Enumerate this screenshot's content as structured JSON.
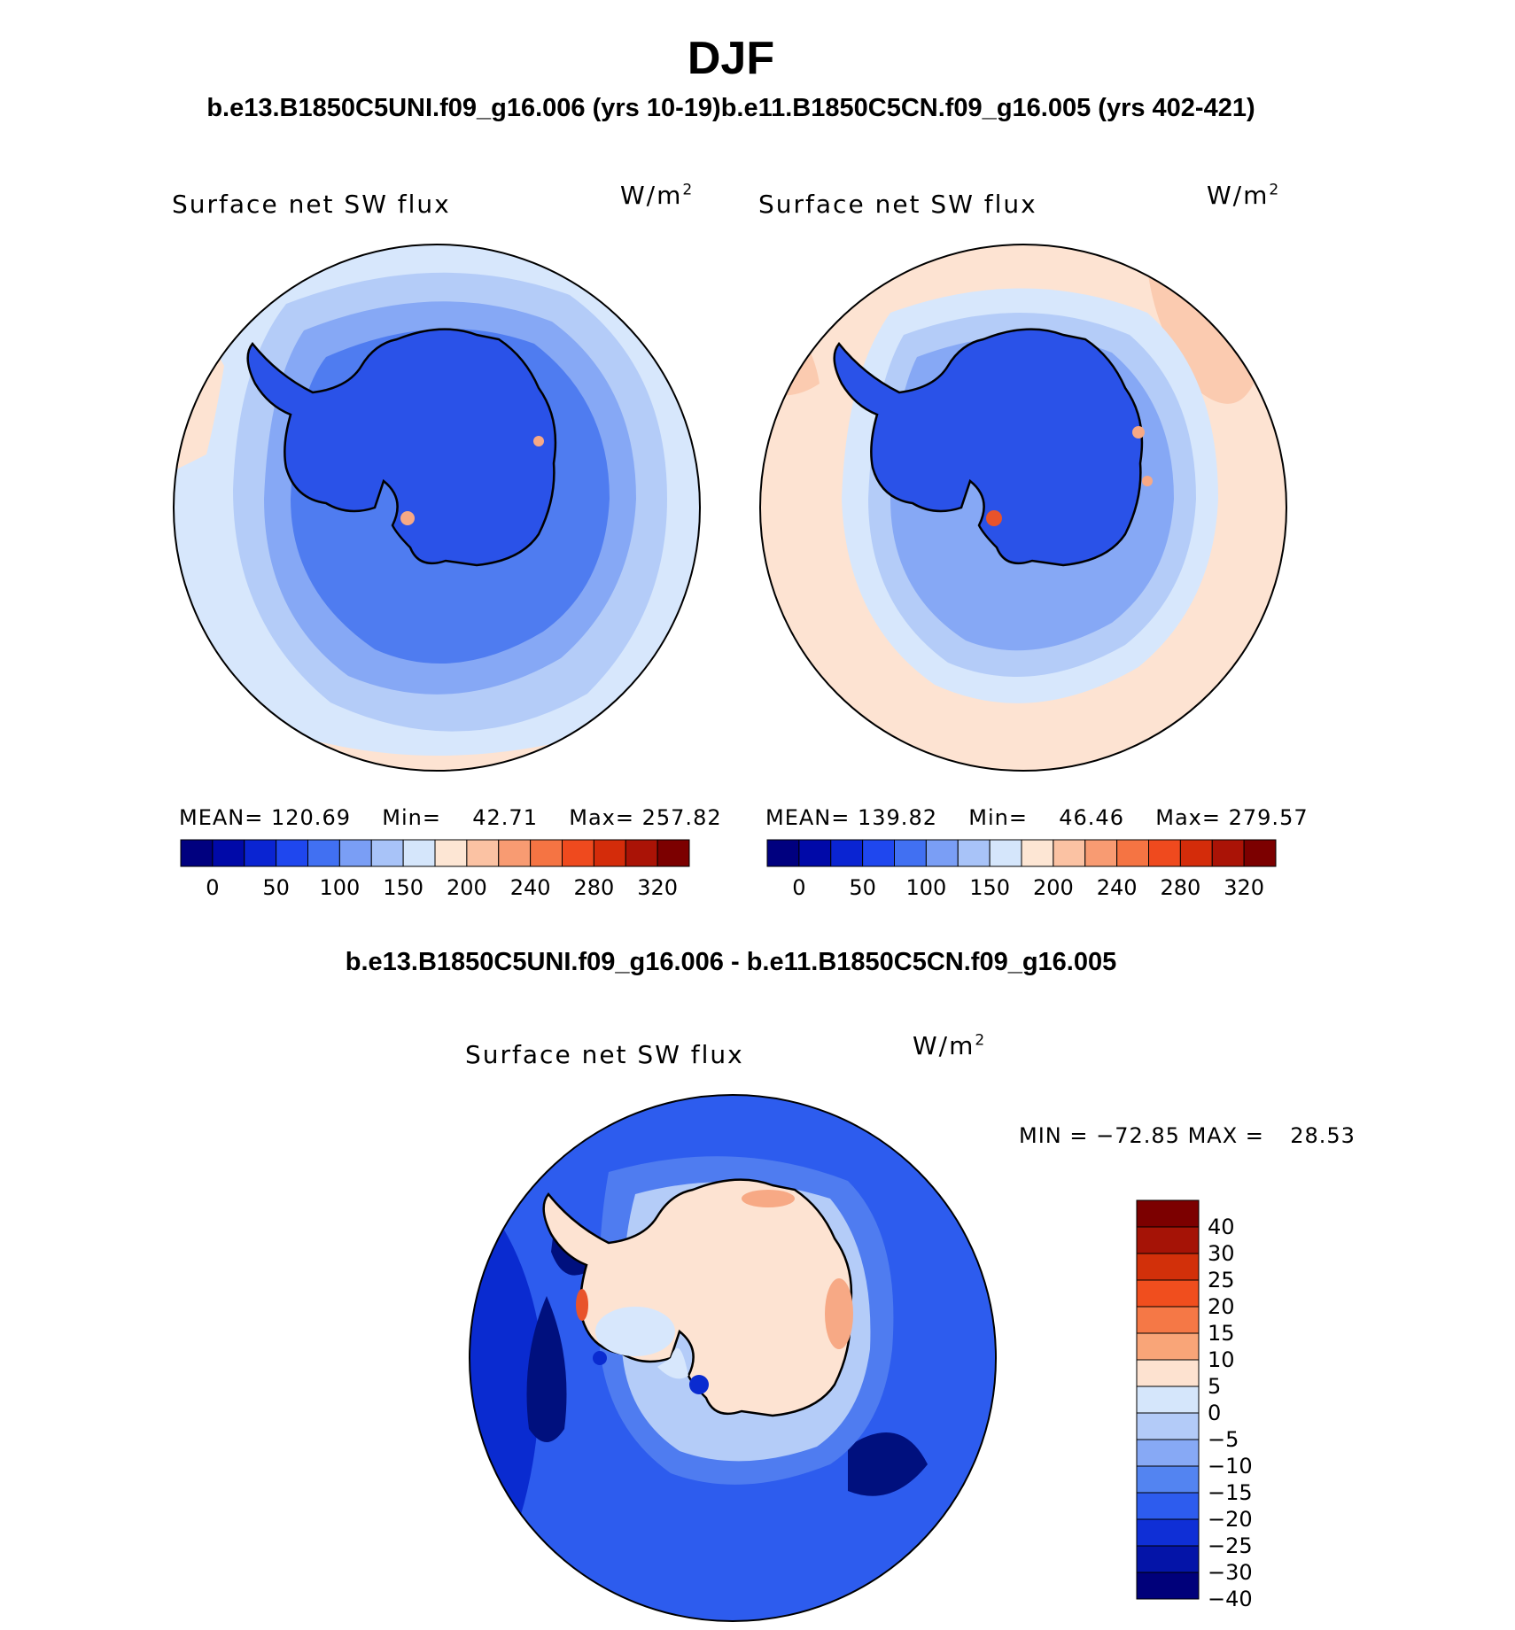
{
  "figure": {
    "season": "DJF",
    "case_a_title": "b.e13.B1850C5UNI.f09_g16.006 (yrs 10-19)",
    "case_b_title": "b.e11.B1850C5CN.f09_g16.005 (yrs 402-421)",
    "diff_title": "b.e13.B1850C5UNI.f09_g16.006 - b.e11.B1850C5CN.f09_g16.005"
  },
  "panels": [
    {
      "variable": "Surface net SW flux",
      "units": "W/m",
      "units_sup": "2",
      "mean_label": "MEAN=",
      "mean": "120.69",
      "min_label": "Min=",
      "min": "42.71",
      "max_label": "Max=",
      "max": "257.82"
    },
    {
      "variable": "Surface net SW flux",
      "units": "W/m",
      "units_sup": "2",
      "mean_label": "MEAN=",
      "mean": "139.82",
      "min_label": "Min=",
      "min": "46.46",
      "max_label": "Max=",
      "max": "279.57"
    }
  ],
  "diff_panel": {
    "variable": "Surface net SW flux",
    "units": "W/m",
    "units_sup": "2",
    "min_label": "MIN =",
    "min": "−72.85",
    "max_label": "MAX =",
    "max": "28.53"
  },
  "abs_colorbar": {
    "colors": [
      "#00007f",
      "#0009a8",
      "#0a24d2",
      "#1f47ee",
      "#4170f2",
      "#7a9ef5",
      "#a8c3f8",
      "#d5e6fb",
      "#fde6d4",
      "#fbc2a3",
      "#f89b72",
      "#f57443",
      "#ef4a1e",
      "#d42c0a",
      "#aa1306",
      "#7c0000"
    ],
    "tick_labels": [
      "0",
      "50",
      "100",
      "150",
      "200",
      "240",
      "280",
      "320"
    ]
  },
  "diff_colorbar": {
    "colors": [
      "#7c0000",
      "#a51306",
      "#d2300a",
      "#f04e1e",
      "#f57846",
      "#f9a578",
      "#fde2d0",
      "#d5e6fb",
      "#b3cbf8",
      "#87a9f5",
      "#5384f1",
      "#2d5cee",
      "#0f2fd6",
      "#0414a8",
      "#00007a"
    ],
    "tick_labels": [
      "40",
      "30",
      "25",
      "20",
      "15",
      "10",
      "5",
      "0",
      "−5",
      "−10",
      "−15",
      "−20",
      "−25",
      "−30",
      "−40"
    ]
  },
  "map_colors": {
    "ice_blue": "#2a52e8",
    "mid_blue": "#4f7cf0",
    "light_blue": "#86a8f5",
    "pale_blue": "#b4ccf8",
    "very_pale_blue": "#d7e7fc",
    "peach": "#fde3d2",
    "salmon": "#f7a985",
    "red": "#e8532b",
    "deep_blue": "#0a2bd0",
    "navy": "#00107e"
  }
}
